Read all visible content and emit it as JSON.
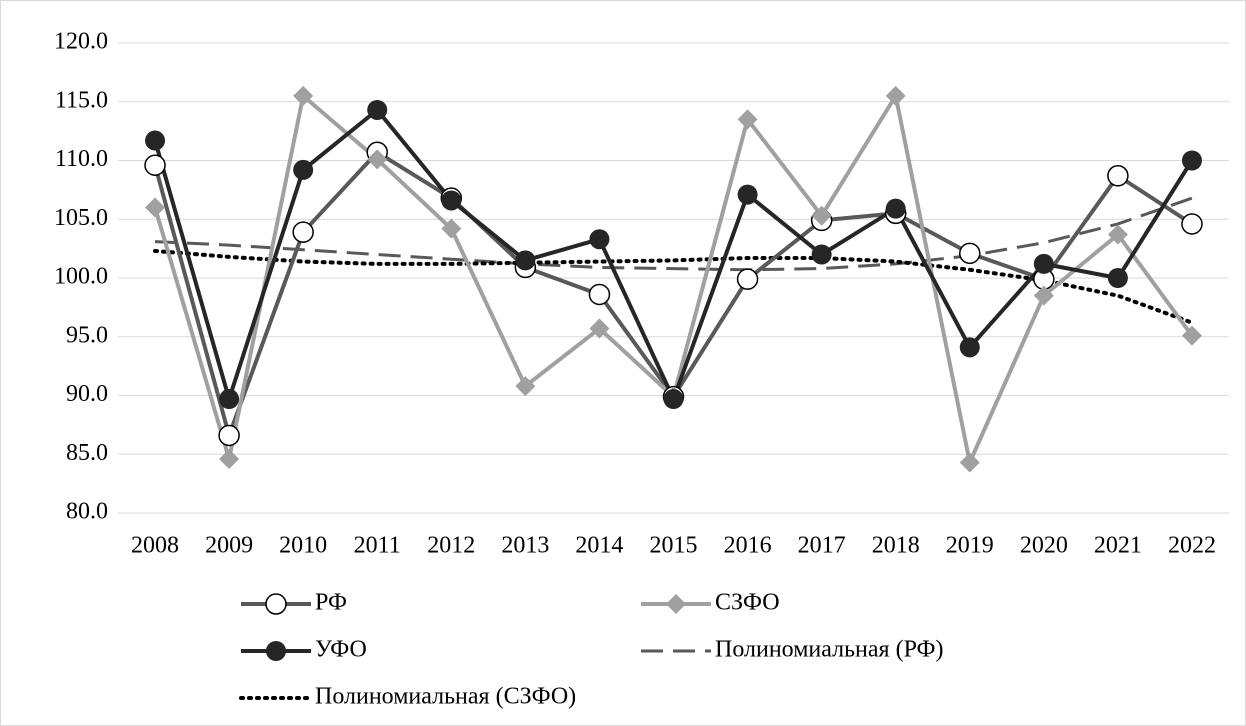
{
  "chart_data": {
    "type": "line",
    "categories": [
      "2008",
      "2009",
      "2010",
      "2011",
      "2012",
      "2013",
      "2014",
      "2015",
      "2016",
      "2017",
      "2018",
      "2019",
      "2020",
      "2021",
      "2022"
    ],
    "ylim": [
      80,
      120
    ],
    "yticks": [
      {
        "value": 80,
        "label": "80.0"
      },
      {
        "value": 85,
        "label": "85.0"
      },
      {
        "value": 90,
        "label": "90.0"
      },
      {
        "value": 95,
        "label": "95.0"
      },
      {
        "value": 100,
        "label": "100.0"
      },
      {
        "value": 105,
        "label": "105.0"
      },
      {
        "value": 110,
        "label": "110.0"
      },
      {
        "value": 115,
        "label": "115.0"
      },
      {
        "value": 120,
        "label": "120.0"
      }
    ],
    "grid": true,
    "legend": "bottom",
    "series": [
      {
        "name": "РФ",
        "color": "#595959",
        "marker": "circle-open",
        "values": [
          109.6,
          86.6,
          103.9,
          110.7,
          106.8,
          100.9,
          98.6,
          89.9,
          99.9,
          104.9,
          105.5,
          102.1,
          99.9,
          108.7,
          104.6
        ]
      },
      {
        "name": "СЗФО",
        "color": "#a0a0a0",
        "marker": "diamond",
        "values": [
          106.0,
          84.6,
          115.5,
          110.1,
          104.2,
          90.8,
          95.7,
          89.9,
          113.5,
          105.3,
          115.5,
          84.3,
          98.5,
          103.7,
          95.1
        ]
      },
      {
        "name": "УФО",
        "color": "#262626",
        "marker": "circle",
        "values": [
          111.7,
          89.7,
          109.2,
          114.3,
          106.6,
          101.5,
          103.3,
          89.7,
          107.1,
          102.0,
          105.9,
          94.1,
          101.2,
          100.0,
          110.0
        ]
      },
      {
        "name": "Полиномиальная (РФ)",
        "color": "#595959",
        "dash": "dashed",
        "values": [
          103.1,
          102.8,
          102.4,
          102.0,
          101.6,
          101.2,
          100.9,
          100.8,
          100.7,
          100.8,
          101.2,
          101.9,
          103.0,
          104.6,
          106.8
        ]
      },
      {
        "name": "Полиномиальная (СЗФО)",
        "color": "#000000",
        "dash": "dotted",
        "values": [
          102.3,
          101.8,
          101.4,
          101.2,
          101.2,
          101.3,
          101.4,
          101.5,
          101.7,
          101.7,
          101.4,
          100.7,
          99.8,
          98.5,
          96.2
        ]
      }
    ]
  }
}
